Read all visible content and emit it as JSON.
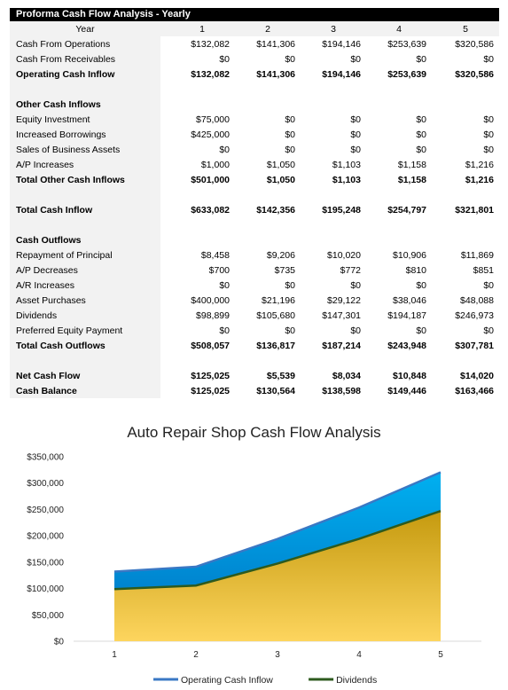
{
  "table": {
    "title": "Proforma Cash Flow Analysis - Yearly",
    "header": [
      "Year",
      "1",
      "2",
      "3",
      "4",
      "5"
    ],
    "rows": [
      {
        "label": "Cash From Operations",
        "values": [
          "$132,082",
          "$141,306",
          "$194,146",
          "$253,639",
          "$320,586"
        ],
        "style": "normal"
      },
      {
        "label": "Cash From Receivables",
        "values": [
          "$0",
          "$0",
          "$0",
          "$0",
          "$0"
        ],
        "style": "normal"
      },
      {
        "label": "Operating Cash Inflow",
        "values": [
          "$132,082",
          "$141,306",
          "$194,146",
          "$253,639",
          "$320,586"
        ],
        "style": "bold"
      },
      {
        "label": "",
        "values": [
          "",
          "",
          "",
          "",
          ""
        ],
        "style": "blank"
      },
      {
        "label": "Other Cash Inflows",
        "values": [
          "",
          "",
          "",
          "",
          ""
        ],
        "style": "section"
      },
      {
        "label": "Equity Investment",
        "values": [
          "$75,000",
          "$0",
          "$0",
          "$0",
          "$0"
        ],
        "style": "normal"
      },
      {
        "label": "Increased Borrowings",
        "values": [
          "$425,000",
          "$0",
          "$0",
          "$0",
          "$0"
        ],
        "style": "normal"
      },
      {
        "label": "Sales of Business Assets",
        "values": [
          "$0",
          "$0",
          "$0",
          "$0",
          "$0"
        ],
        "style": "normal"
      },
      {
        "label": "A/P Increases",
        "values": [
          "$1,000",
          "$1,050",
          "$1,103",
          "$1,158",
          "$1,216"
        ],
        "style": "normal"
      },
      {
        "label": "Total Other Cash Inflows",
        "values": [
          "$501,000",
          "$1,050",
          "$1,103",
          "$1,158",
          "$1,216"
        ],
        "style": "bold"
      },
      {
        "label": "",
        "values": [
          "",
          "",
          "",
          "",
          ""
        ],
        "style": "blank"
      },
      {
        "label": "Total Cash Inflow",
        "values": [
          "$633,082",
          "$142,356",
          "$195,248",
          "$254,797",
          "$321,801"
        ],
        "style": "bold"
      },
      {
        "label": "",
        "values": [
          "",
          "",
          "",
          "",
          ""
        ],
        "style": "blank"
      },
      {
        "label": "Cash Outflows",
        "values": [
          "",
          "",
          "",
          "",
          ""
        ],
        "style": "section"
      },
      {
        "label": "Repayment of Principal",
        "values": [
          "$8,458",
          "$9,206",
          "$10,020",
          "$10,906",
          "$11,869"
        ],
        "style": "normal"
      },
      {
        "label": "A/P Decreases",
        "values": [
          "$700",
          "$735",
          "$772",
          "$810",
          "$851"
        ],
        "style": "normal"
      },
      {
        "label": "A/R Increases",
        "values": [
          "$0",
          "$0",
          "$0",
          "$0",
          "$0"
        ],
        "style": "normal"
      },
      {
        "label": "Asset Purchases",
        "values": [
          "$400,000",
          "$21,196",
          "$29,122",
          "$38,046",
          "$48,088"
        ],
        "style": "normal"
      },
      {
        "label": "Dividends",
        "values": [
          "$98,899",
          "$105,680",
          "$147,301",
          "$194,187",
          "$246,973"
        ],
        "style": "normal"
      },
      {
        "label": "Preferred Equity Payment",
        "values": [
          "$0",
          "$0",
          "$0",
          "$0",
          "$0"
        ],
        "style": "normal"
      },
      {
        "label": "Total Cash Outflows",
        "values": [
          "$508,057",
          "$136,817",
          "$187,214",
          "$243,948",
          "$307,781"
        ],
        "style": "bold"
      },
      {
        "label": "",
        "values": [
          "",
          "",
          "",
          "",
          ""
        ],
        "style": "blank"
      },
      {
        "label": "Net Cash Flow",
        "values": [
          "$125,025",
          "$5,539",
          "$8,034",
          "$10,848",
          "$14,020"
        ],
        "style": "bold"
      },
      {
        "label": "Cash Balance",
        "values": [
          "$125,025",
          "$130,564",
          "$138,598",
          "$149,446",
          "$163,466"
        ],
        "style": "bold"
      }
    ]
  },
  "chart_data": {
    "type": "area",
    "title": "Auto Repair Shop Cash Flow Analysis",
    "x": [
      1,
      2,
      3,
      4,
      5
    ],
    "ylim": [
      0,
      350000
    ],
    "yticks": [
      0,
      50000,
      100000,
      150000,
      200000,
      250000,
      300000,
      350000
    ],
    "ytick_labels": [
      "$0",
      "$50,000",
      "$100,000",
      "$150,000",
      "$200,000",
      "$250,000",
      "$300,000",
      "$350,000"
    ],
    "grid": false,
    "legend_position": "bottom",
    "series": [
      {
        "name": "Operating Cash Inflow",
        "values": [
          132082,
          141306,
          194146,
          253639,
          320586
        ],
        "line_color": "#3a78c4",
        "fill_top": "#00b0f0",
        "fill_bottom": "#0070c0"
      },
      {
        "name": "Dividends",
        "values": [
          98899,
          105680,
          147301,
          194187,
          246973
        ],
        "line_color": "#2d5a1e",
        "fill_top": "#c59a0f",
        "fill_bottom": "#fdd55e"
      }
    ]
  }
}
